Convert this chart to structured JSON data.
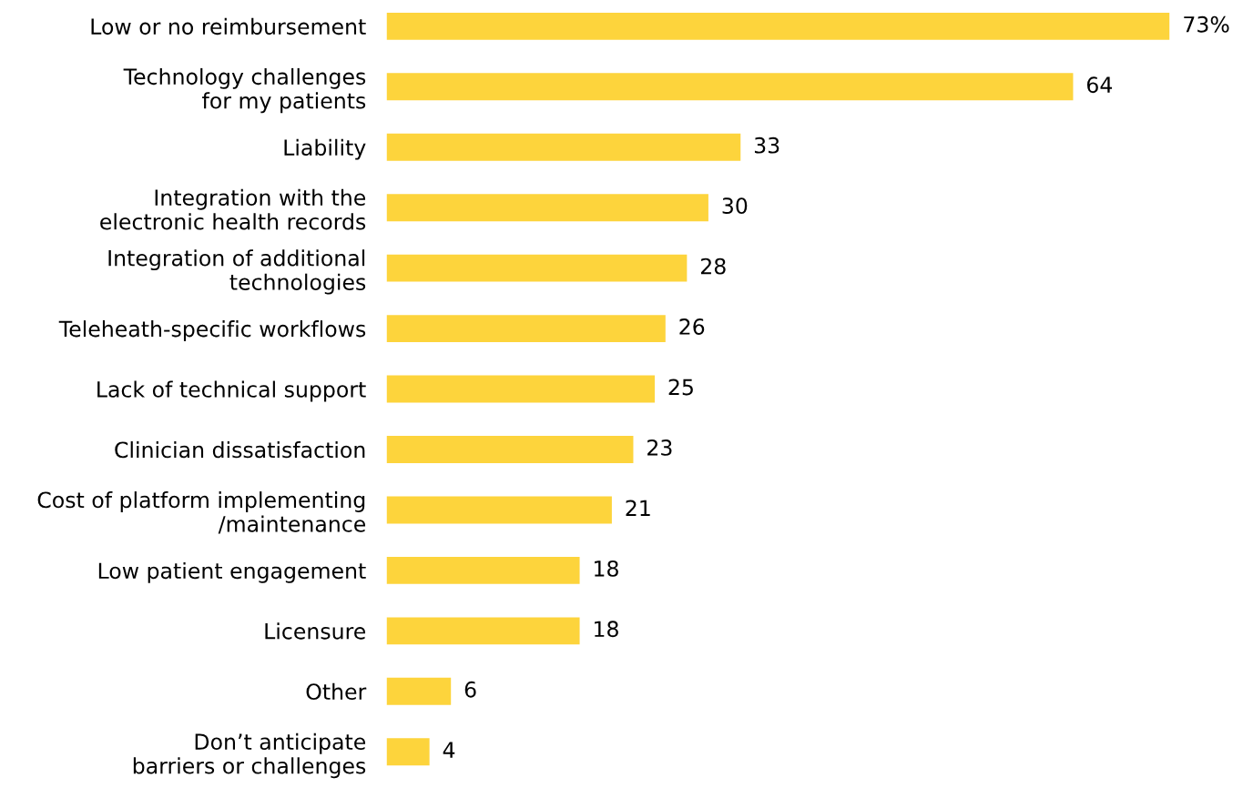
{
  "chart_data": {
    "type": "bar",
    "orientation": "horizontal",
    "tick_labels": "y",
    "grid": false,
    "color": "#fdd43c",
    "categories": [
      "Low or no reimbursement",
      "Technology challenges\nfor my patients",
      "Liability",
      "Integration with the\nelectronic health records",
      "Integration of additional\ntechnologies",
      "Teleheath-specific workflows",
      "Lack of technical support",
      "Clinician dissatisfaction",
      "Cost of platform implementing\n/maintenance",
      "Low patient engagement",
      "Licensure",
      "Other",
      "Don’t anticipate\nbarriers or challenges"
    ],
    "values": [
      73,
      64,
      33,
      30,
      28,
      26,
      25,
      23,
      21,
      18,
      18,
      6,
      4
    ],
    "value_labels": [
      "73%",
      "64",
      "33",
      "30",
      "28",
      "26",
      "25",
      "23",
      "21",
      "18",
      "18",
      "6",
      "4"
    ]
  }
}
